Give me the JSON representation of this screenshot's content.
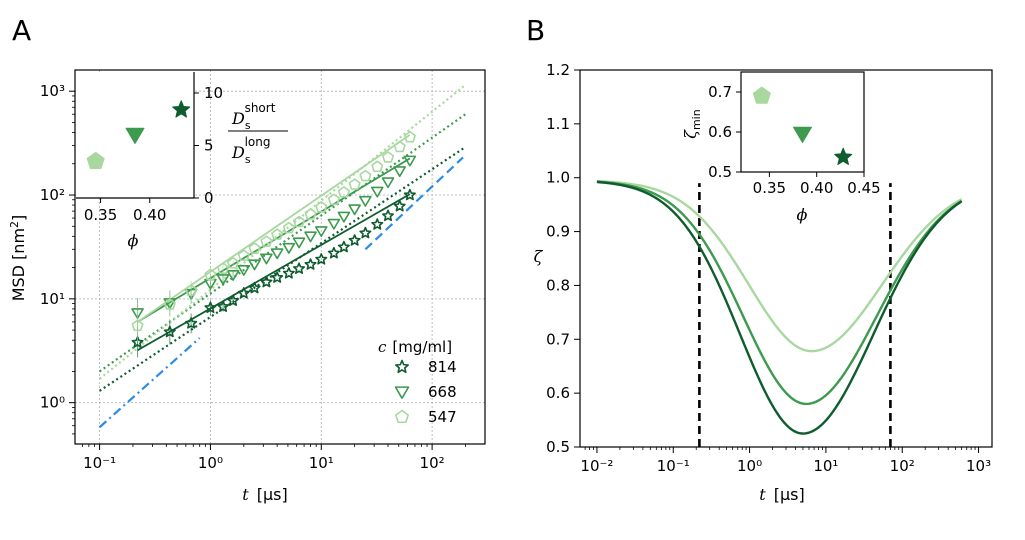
{
  "panels": {
    "a": {
      "letter": "A",
      "xlabel_var": "t",
      "xlabel_unit": "[μs]",
      "ylabel": "MSD [nm",
      "ylabel_sup": "2",
      "ylabel_close": "]",
      "legend_title_var": "c",
      "legend_title_unit": "[mg/ml]"
    },
    "b": {
      "letter": "B",
      "ylabel": "ζ",
      "xlabel_var": "t",
      "xlabel_unit": "[μs]",
      "inset_ylabel": "ζ",
      "inset_ylabel_sub": "min",
      "inset_xlabel": "ϕ"
    }
  },
  "chart_data": [
    {
      "id": "A-main",
      "type": "scatter",
      "title": "",
      "xlabel": "t [μs]",
      "ylabel": "MSD [nm²]",
      "xscale": "log",
      "yscale": "log",
      "xlim": [
        0.06,
        300
      ],
      "ylim": [
        0.4,
        1600
      ],
      "grid": true,
      "x_tick_values": [
        0.1,
        1,
        10,
        100
      ],
      "x_tick_labels": [
        "10⁻¹",
        "10⁰",
        "10¹",
        "10²"
      ],
      "y_tick_values": [
        1,
        10,
        100,
        1000
      ],
      "y_tick_labels": [
        "10⁰",
        "10¹",
        "10²",
        "10³"
      ],
      "legend": "right",
      "series": [
        {
          "name": "814",
          "color": "#0f5c2e",
          "marker": "star",
          "x": [
            0.22,
            0.43,
            0.67,
            1.0,
            1.3,
            1.6,
            2.0,
            2.5,
            3.2,
            4.0,
            5.1,
            6.3,
            8.0,
            10,
            13,
            16,
            20,
            25,
            32,
            40,
            51,
            63
          ],
          "y": [
            3.8,
            4.8,
            5.8,
            8.2,
            8.4,
            9.6,
            11.3,
            12.7,
            14.5,
            16.0,
            17.6,
            19.5,
            21.4,
            24.0,
            27.5,
            31.5,
            36.5,
            43,
            52,
            63,
            78,
            100
          ],
          "fit_solid": {
            "x": [
              0.22,
              63
            ],
            "y": [
              3.2,
              102
            ]
          },
          "fit_dotted": {
            "x": [
              0.1,
              200
            ],
            "y": [
              1.3,
              290
            ]
          }
        },
        {
          "name": "668",
          "color": "#3d9a4e",
          "marker": "triangle-down",
          "x": [
            0.22,
            0.43,
            0.67,
            1.0,
            1.3,
            1.6,
            2.0,
            2.5,
            3.2,
            4.0,
            5.1,
            6.3,
            8.0,
            10,
            13,
            16,
            20,
            25,
            32,
            40,
            51,
            63
          ],
          "y": [
            7.3,
            9.1,
            11.2,
            14.0,
            15.5,
            17.0,
            19.0,
            21.5,
            24.5,
            27.5,
            31.0,
            35,
            40,
            45,
            53,
            62,
            73,
            88,
            108,
            133,
            170,
            215
          ],
          "fit_solid": {
            "x": [
              0.22,
              63
            ],
            "y": [
              6.0,
              225
            ]
          },
          "fit_dotted": {
            "x": [
              0.1,
              200
            ],
            "y": [
              2.0,
              600
            ]
          }
        },
        {
          "name": "547",
          "color": "#a8d8a0",
          "marker": "pentagon",
          "x": [
            0.22,
            0.43,
            0.67,
            1.0,
            1.3,
            1.6,
            2.0,
            2.5,
            3.2,
            4.0,
            5.1,
            6.3,
            8.0,
            10,
            13,
            16,
            20,
            25,
            32,
            40,
            51,
            63
          ],
          "y": [
            5.5,
            8.8,
            12.0,
            17.0,
            19.5,
            22.0,
            26.0,
            30.5,
            35.5,
            41.5,
            48,
            55,
            65,
            76,
            90,
            106,
            126,
            152,
            187,
            230,
            290,
            360
          ],
          "fit_solid": {
            "x": [
              0.22,
              63
            ],
            "y": [
              6.0,
              380
            ]
          },
          "fit_dotted": {
            "x": [
              0.1,
              200
            ],
            "y": [
              1.7,
              1150
            ]
          }
        }
      ],
      "reference_lines": [
        {
          "name": "short-time slope",
          "color": "#2b8ce6",
          "style": "dashdot",
          "x": [
            0.1,
            0.8
          ],
          "y": [
            0.58,
            4.2
          ]
        },
        {
          "name": "long-time slope",
          "color": "#2b8ce6",
          "style": "dashed",
          "x": [
            25,
            190
          ],
          "y": [
            30,
            230
          ]
        }
      ]
    },
    {
      "id": "A-inset",
      "type": "scatter",
      "xlabel": "ϕ",
      "ylabel": "D_s^short / D_s^long",
      "ylabel_num": "D",
      "ylabel_num_sub": "s",
      "ylabel_num_sup": "short",
      "ylabel_den": "D",
      "ylabel_den_sub": "s",
      "ylabel_den_sup": "long",
      "xlim": [
        0.325,
        0.445
      ],
      "ylim": [
        0,
        12
      ],
      "x_tick_values": [
        0.35,
        0.4
      ],
      "x_tick_labels": [
        "0.35",
        "0.40"
      ],
      "y_tick_values": [
        0,
        5,
        10
      ],
      "y_tick_labels": [
        "0",
        "5",
        "10"
      ],
      "points": [
        {
          "phi": 0.345,
          "value": 3.5,
          "color": "#a8d8a0",
          "marker": "pentagon",
          "label": "547"
        },
        {
          "phi": 0.385,
          "value": 6.0,
          "color": "#3d9a4e",
          "marker": "triangle-down",
          "label": "668"
        },
        {
          "phi": 0.432,
          "value": 8.4,
          "color": "#0f5c2e",
          "marker": "star",
          "label": "814"
        }
      ]
    },
    {
      "id": "B-main",
      "type": "line",
      "xlabel": "t [μs]",
      "ylabel": "ζ",
      "xscale": "log",
      "xlim": [
        0.006,
        1500
      ],
      "ylim": [
        0.5,
        1.2
      ],
      "x_tick_values": [
        0.01,
        0.1,
        1,
        10,
        100,
        1000
      ],
      "x_tick_labels": [
        "10⁻²",
        "10⁻¹",
        "10⁰",
        "10¹",
        "10²",
        "10³"
      ],
      "y_tick_values": [
        0.5,
        0.6,
        0.7,
        0.8,
        0.9,
        1.0,
        1.1,
        1.2
      ],
      "y_tick_labels": [
        "0.5",
        "0.6",
        "0.7",
        "0.8",
        "0.9",
        "1.0",
        "1.1",
        "1.2"
      ],
      "vlines": [
        0.22,
        70
      ],
      "series": [
        {
          "name": "814",
          "color": "#0f5c2e",
          "min_t": 5.0,
          "min_value": 0.537
        },
        {
          "name": "668",
          "color": "#3d9a4e",
          "min_t": 5.5,
          "min_value": 0.592
        },
        {
          "name": "547",
          "color": "#a8d8a0",
          "min_t": 6.5,
          "min_value": 0.69
        }
      ]
    },
    {
      "id": "B-inset",
      "type": "scatter",
      "xlabel": "ϕ",
      "ylabel": "ζ_min",
      "xlim": [
        0.32,
        0.45
      ],
      "ylim": [
        0.5,
        0.75
      ],
      "x_tick_values": [
        0.35,
        0.4,
        0.45
      ],
      "x_tick_labels": [
        "0.35",
        "0.40",
        "0.45"
      ],
      "y_tick_values": [
        0.5,
        0.6,
        0.7
      ],
      "y_tick_labels": [
        "0.5",
        "0.6",
        "0.7"
      ],
      "points": [
        {
          "phi": 0.342,
          "value": 0.69,
          "color": "#a8d8a0",
          "marker": "pentagon",
          "label": "547"
        },
        {
          "phi": 0.385,
          "value": 0.595,
          "color": "#3d9a4e",
          "marker": "triangle-down",
          "label": "668"
        },
        {
          "phi": 0.428,
          "value": 0.537,
          "color": "#0f5c2e",
          "marker": "star",
          "label": "814"
        }
      ]
    }
  ]
}
